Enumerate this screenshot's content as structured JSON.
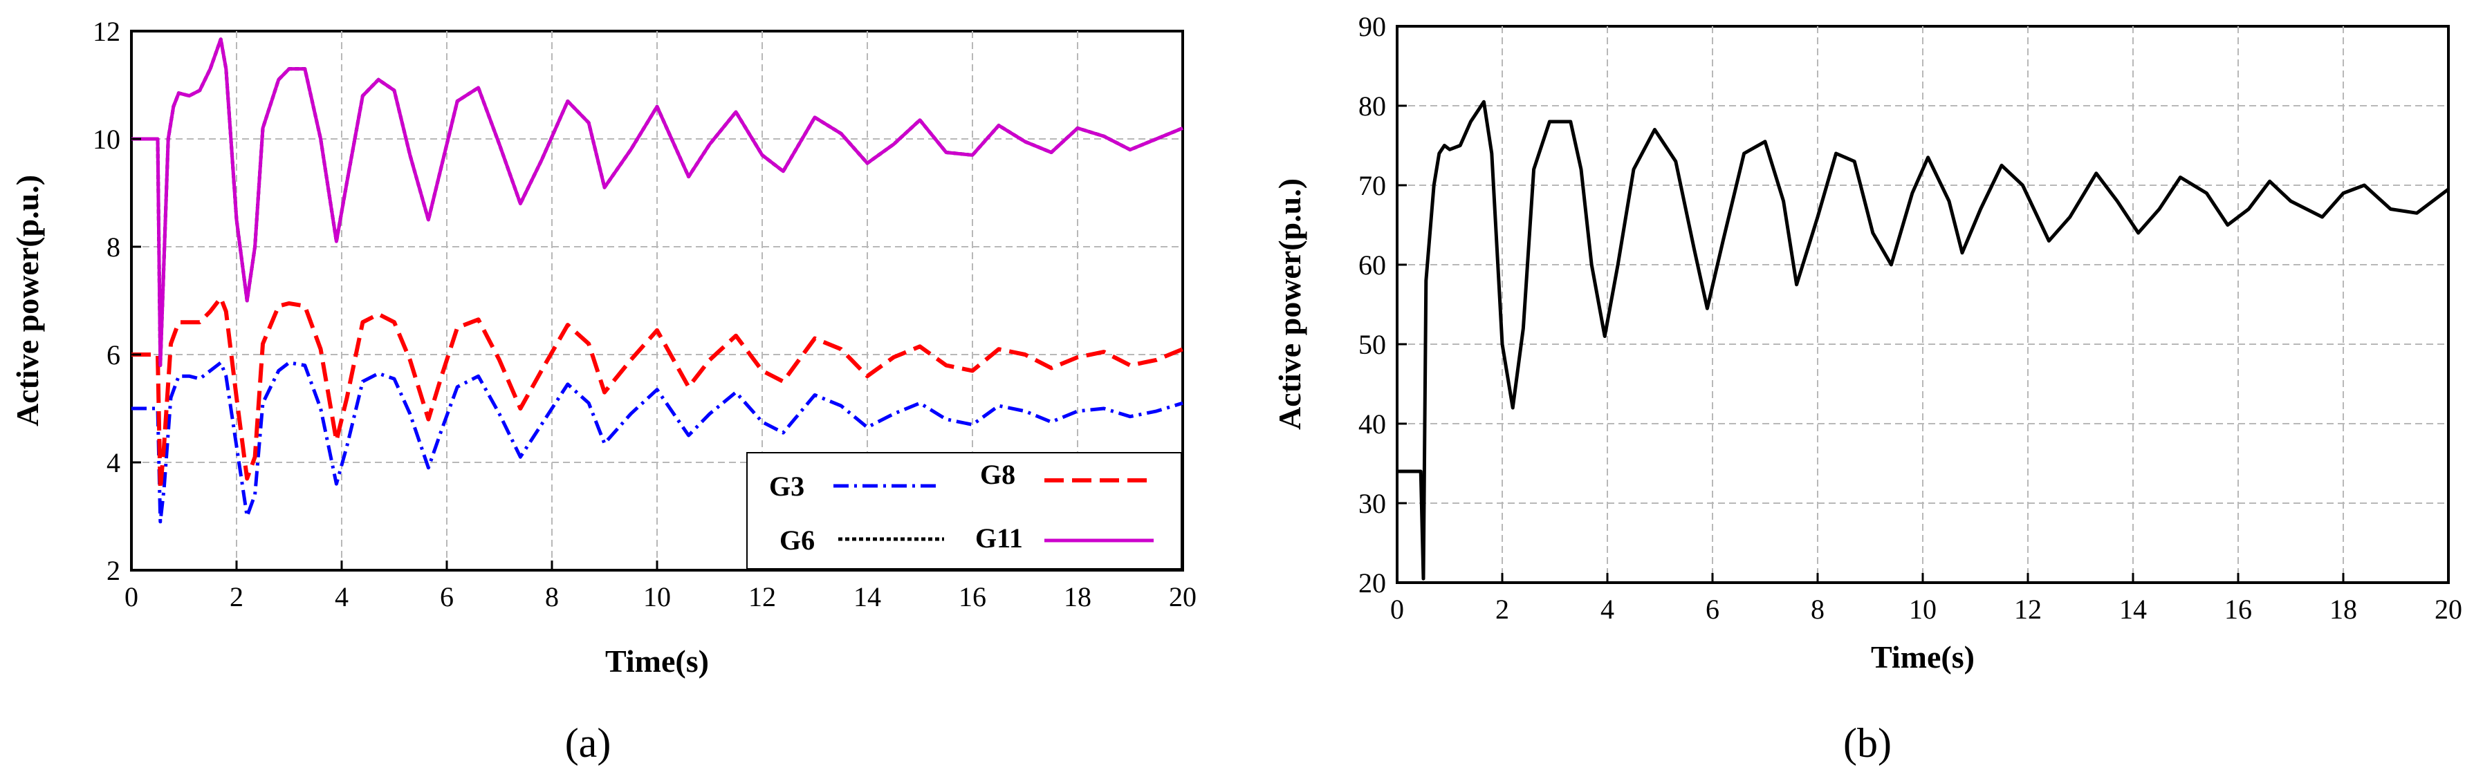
{
  "chart_data": [
    {
      "type": "line",
      "panel_label": "(a)",
      "xlabel": "Time(s)",
      "ylabel": "Active power(p.u.)",
      "xlim": [
        0,
        20
      ],
      "ylim": [
        2,
        12
      ],
      "xticks": [
        0,
        2,
        4,
        6,
        8,
        10,
        12,
        14,
        16,
        18,
        20
      ],
      "yticks": [
        2,
        4,
        6,
        8,
        10,
        12
      ],
      "grid": true,
      "legend_position": "bottom-right",
      "series": [
        {
          "name": "G3",
          "color": "#0000ff",
          "style": "dashdot",
          "x": [
            0,
            0.5,
            0.55,
            0.62,
            0.75,
            0.9,
            1.1,
            1.3,
            1.5,
            1.7,
            1.8,
            2.0,
            2.2,
            2.35,
            2.5,
            2.8,
            3.0,
            3.3,
            3.6,
            3.9,
            4.1,
            4.4,
            4.7,
            5.0,
            5.3,
            5.65,
            5.9,
            6.2,
            6.6,
            7.0,
            7.4,
            7.8,
            8.3,
            8.7,
            9.0,
            9.5,
            10.0,
            10.6,
            11.0,
            11.5,
            12.0,
            12.4,
            13.0,
            13.5,
            14.0,
            14.5,
            15.0,
            15.5,
            16.0,
            16.5,
            17.0,
            17.5,
            18.0,
            18.5,
            19.0,
            19.5,
            20.0
          ],
          "values": [
            5.0,
            5.0,
            2.9,
            3.5,
            5.2,
            5.6,
            5.6,
            5.55,
            5.7,
            5.85,
            5.6,
            4.3,
            3.0,
            3.4,
            5.1,
            5.7,
            5.85,
            5.8,
            5.0,
            3.6,
            4.3,
            5.5,
            5.65,
            5.55,
            4.9,
            3.9,
            4.6,
            5.4,
            5.6,
            4.9,
            4.1,
            4.7,
            5.45,
            5.1,
            4.35,
            4.9,
            5.35,
            4.5,
            4.9,
            5.3,
            4.75,
            4.55,
            5.25,
            5.05,
            4.65,
            4.9,
            5.1,
            4.8,
            4.7,
            5.05,
            4.95,
            4.75,
            4.95,
            5.0,
            4.85,
            4.95,
            5.1
          ]
        },
        {
          "name": "G8",
          "color": "#ff0000",
          "style": "dashed",
          "x": [
            0,
            0.5,
            0.55,
            0.62,
            0.75,
            0.9,
            1.1,
            1.3,
            1.5,
            1.7,
            1.8,
            2.0,
            2.2,
            2.35,
            2.5,
            2.8,
            3.0,
            3.3,
            3.6,
            3.9,
            4.1,
            4.4,
            4.7,
            5.0,
            5.3,
            5.65,
            5.9,
            6.2,
            6.6,
            7.0,
            7.4,
            7.8,
            8.3,
            8.7,
            9.0,
            9.5,
            10.0,
            10.6,
            11.0,
            11.5,
            12.0,
            12.4,
            13.0,
            13.5,
            14.0,
            14.5,
            15.0,
            15.5,
            16.0,
            16.5,
            17.0,
            17.5,
            18.0,
            18.5,
            19.0,
            19.5,
            20.0
          ],
          "values": [
            6.0,
            6.0,
            3.5,
            4.3,
            6.2,
            6.6,
            6.6,
            6.6,
            6.8,
            7.05,
            6.8,
            5.2,
            3.7,
            4.1,
            6.2,
            6.9,
            6.95,
            6.9,
            6.1,
            4.4,
            5.2,
            6.6,
            6.75,
            6.6,
            5.9,
            4.8,
            5.6,
            6.5,
            6.65,
            5.9,
            5.0,
            5.7,
            6.55,
            6.2,
            5.3,
            5.9,
            6.45,
            5.4,
            5.9,
            6.35,
            5.7,
            5.5,
            6.3,
            6.1,
            5.6,
            5.95,
            6.15,
            5.8,
            5.7,
            6.1,
            6.0,
            5.75,
            5.95,
            6.05,
            5.8,
            5.9,
            6.1
          ]
        },
        {
          "name": "G6",
          "color": "#000000",
          "style": "dotted",
          "x": [
            0,
            0.5,
            0.55,
            0.6,
            0.7,
            0.8,
            0.9,
            1.1,
            1.3,
            1.5,
            1.7,
            1.8,
            2.0,
            2.2,
            2.35,
            2.5,
            2.8,
            3.0,
            3.3,
            3.6,
            3.9,
            4.1,
            4.4,
            4.7,
            5.0,
            5.3,
            5.65,
            5.9,
            6.2,
            6.6,
            7.0,
            7.4,
            7.8,
            8.3,
            8.7,
            9.0,
            9.5,
            10.0,
            10.6,
            11.0,
            11.5,
            12.0,
            12.4,
            13.0,
            13.5,
            14.0,
            14.5,
            15.0,
            15.5,
            16.0,
            16.5,
            17.0,
            17.5,
            18.0,
            18.5,
            19.0,
            19.5,
            20.0
          ],
          "values": [
            10.0,
            10.0,
            5.8,
            7.2,
            10.0,
            10.6,
            10.85,
            10.8,
            10.9,
            11.3,
            11.85,
            11.3,
            8.5,
            7.0,
            8.0,
            10.2,
            11.1,
            11.3,
            11.3,
            10.0,
            8.1,
            9.2,
            10.8,
            11.1,
            10.9,
            9.7,
            8.5,
            9.5,
            10.7,
            10.95,
            9.9,
            8.8,
            9.6,
            10.7,
            10.3,
            9.1,
            9.8,
            10.6,
            9.3,
            9.9,
            10.5,
            9.7,
            9.4,
            10.4,
            10.1,
            9.55,
            9.9,
            10.35,
            9.75,
            9.7,
            10.25,
            9.95,
            9.75,
            10.2,
            10.05,
            9.8,
            10.0,
            10.2
          ]
        },
        {
          "name": "G11",
          "color": "#cc00cc",
          "style": "solid",
          "x": [
            0,
            0.5,
            0.55,
            0.6,
            0.7,
            0.8,
            0.9,
            1.1,
            1.3,
            1.5,
            1.7,
            1.8,
            2.0,
            2.2,
            2.35,
            2.5,
            2.8,
            3.0,
            3.3,
            3.6,
            3.9,
            4.1,
            4.4,
            4.7,
            5.0,
            5.3,
            5.65,
            5.9,
            6.2,
            6.6,
            7.0,
            7.4,
            7.8,
            8.3,
            8.7,
            9.0,
            9.5,
            10.0,
            10.6,
            11.0,
            11.5,
            12.0,
            12.4,
            13.0,
            13.5,
            14.0,
            14.5,
            15.0,
            15.5,
            16.0,
            16.5,
            17.0,
            17.5,
            18.0,
            18.5,
            19.0,
            19.5,
            20.0
          ],
          "values": [
            10.0,
            10.0,
            5.8,
            7.2,
            10.0,
            10.6,
            10.85,
            10.8,
            10.9,
            11.3,
            11.85,
            11.3,
            8.5,
            7.0,
            8.0,
            10.2,
            11.1,
            11.3,
            11.3,
            10.0,
            8.1,
            9.2,
            10.8,
            11.1,
            10.9,
            9.7,
            8.5,
            9.5,
            10.7,
            10.95,
            9.9,
            8.8,
            9.6,
            10.7,
            10.3,
            9.1,
            9.8,
            10.6,
            9.3,
            9.9,
            10.5,
            9.7,
            9.4,
            10.4,
            10.1,
            9.55,
            9.9,
            10.35,
            9.75,
            9.7,
            10.25,
            9.95,
            9.75,
            10.2,
            10.05,
            9.8,
            10.0,
            10.2
          ]
        }
      ]
    },
    {
      "type": "line",
      "panel_label": "(b)",
      "xlabel": "Time(s)",
      "ylabel": "Active power(p.u.)",
      "xlim": [
        0,
        20
      ],
      "ylim": [
        20,
        90
      ],
      "xticks": [
        0,
        2,
        4,
        6,
        8,
        10,
        12,
        14,
        16,
        18,
        20
      ],
      "yticks": [
        20,
        30,
        40,
        50,
        60,
        70,
        80,
        90
      ],
      "grid": true,
      "series": [
        {
          "name": "",
          "color": "#000000",
          "style": "solid",
          "x": [
            0,
            0.45,
            0.5,
            0.55,
            0.6,
            0.7,
            0.8,
            0.9,
            1.0,
            1.2,
            1.4,
            1.65,
            1.8,
            2.0,
            2.2,
            2.4,
            2.6,
            2.9,
            3.0,
            3.3,
            3.5,
            3.7,
            3.95,
            4.2,
            4.5,
            4.9,
            5.3,
            5.65,
            5.9,
            6.2,
            6.6,
            7.0,
            7.35,
            7.6,
            8.0,
            8.35,
            8.7,
            9.05,
            9.4,
            9.8,
            10.1,
            10.5,
            10.75,
            11.1,
            11.5,
            11.9,
            12.4,
            12.8,
            13.3,
            13.7,
            14.1,
            14.5,
            14.9,
            15.4,
            15.8,
            16.2,
            16.6,
            17.0,
            17.6,
            18.0,
            18.4,
            18.9,
            19.4,
            19.8,
            20.0
          ],
          "values": [
            34,
            34,
            20.5,
            58,
            62,
            70,
            74,
            75,
            74.5,
            75,
            78,
            80.5,
            74,
            50,
            42,
            52,
            72,
            78,
            78,
            78,
            72,
            60,
            51,
            60,
            72,
            77,
            73,
            62,
            54.5,
            63,
            74,
            75.5,
            68,
            57.5,
            66,
            74,
            73,
            64,
            60,
            69,
            73.5,
            68,
            61.5,
            67,
            72.5,
            70,
            63,
            66,
            71.5,
            68,
            64,
            67,
            71,
            69,
            65,
            67,
            70.5,
            68,
            66,
            69,
            70,
            67,
            66.5,
            68.5,
            69.5
          ]
        }
      ]
    }
  ]
}
